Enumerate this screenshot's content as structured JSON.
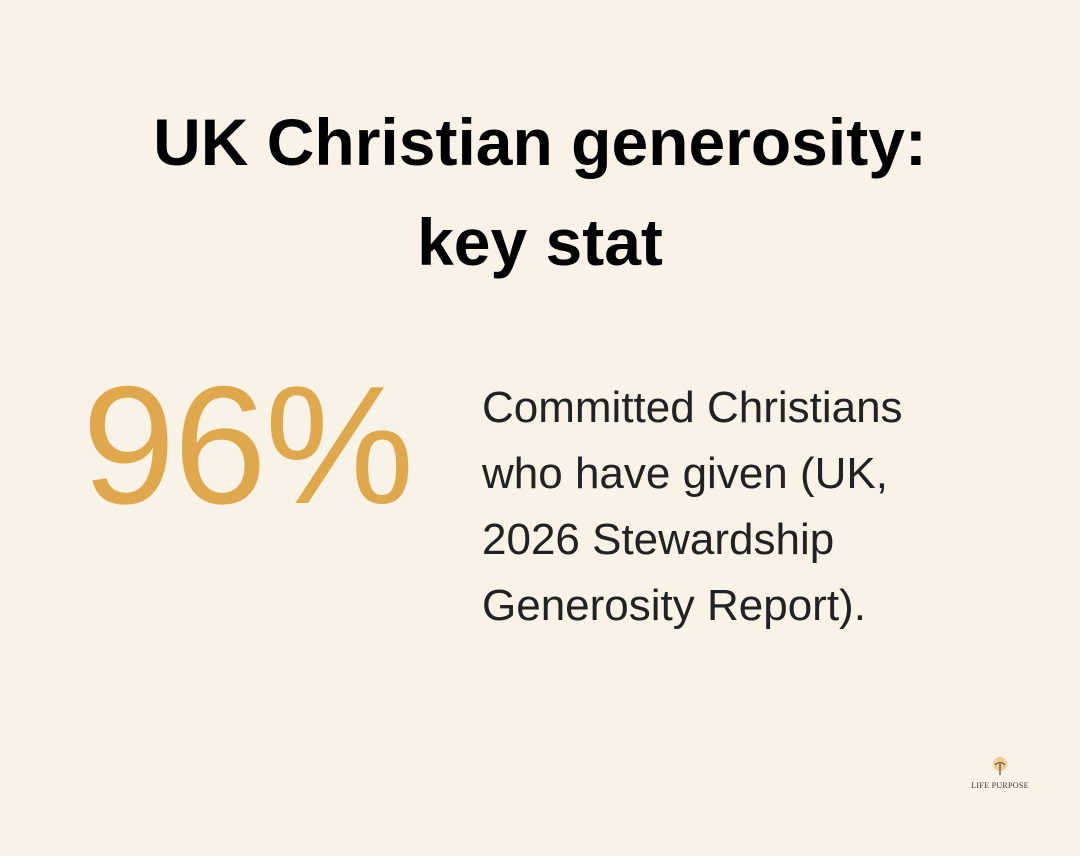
{
  "header": {
    "title_lines": [
      "UK Christian generosity:",
      "key stat"
    ]
  },
  "stat": {
    "value_text": "96%",
    "description_lines": [
      "Committed Christians",
      "who have given (UK,",
      "2026 Stewardship",
      "Generosity Report)."
    ]
  },
  "logo": {
    "text": "LIFE PURPOSE"
  }
}
